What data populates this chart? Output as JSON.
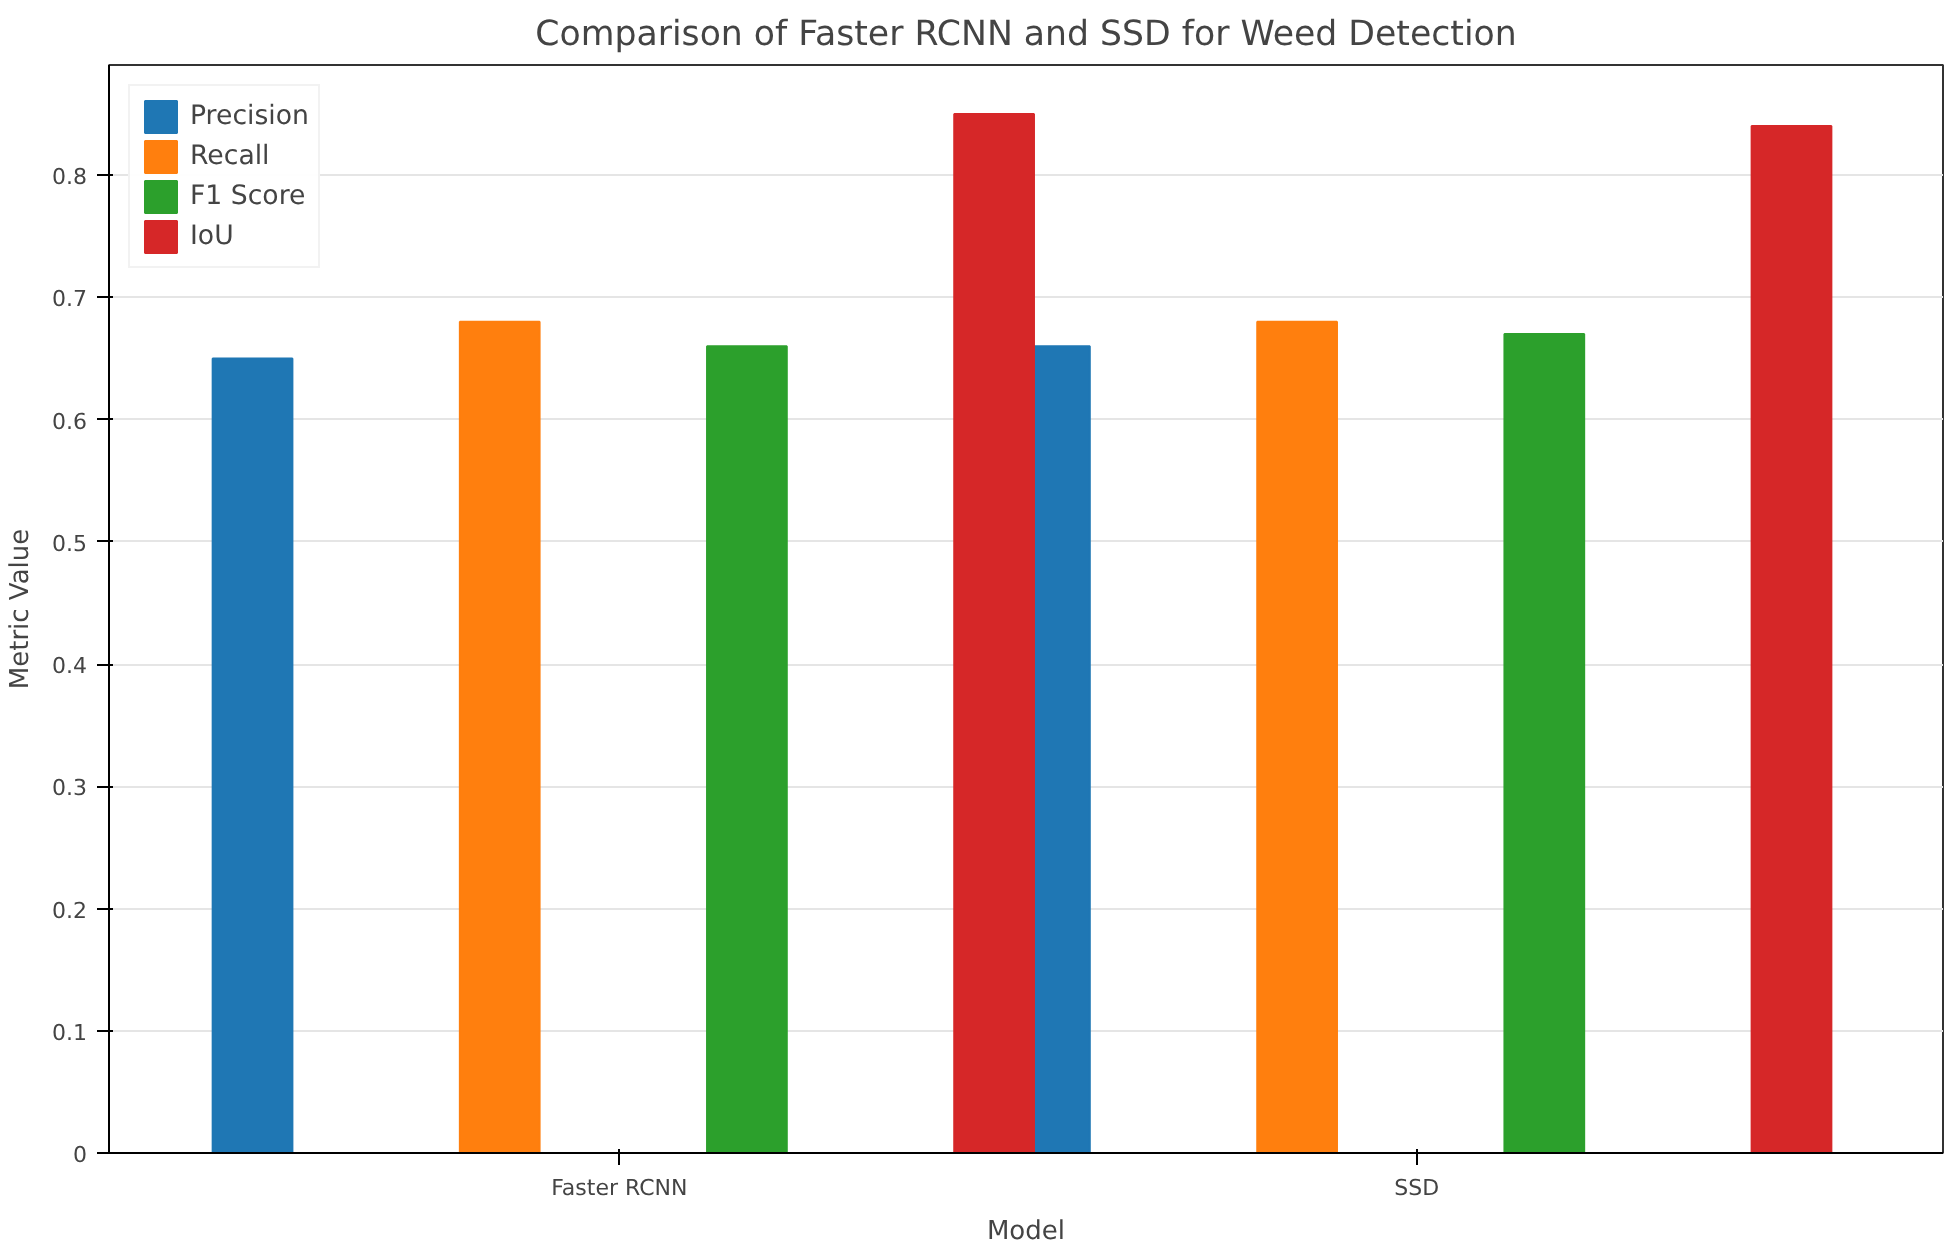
{
  "chart_data": {
    "type": "bar",
    "title": "Comparison of Faster RCNN and SSD for Weed Detection",
    "xlabel": "Model",
    "ylabel": "Metric Value",
    "categories": [
      "Faster RCNN",
      "SSD"
    ],
    "series": [
      {
        "name": "Precision",
        "color": "#1f77b4",
        "values": [
          0.65,
          0.66
        ]
      },
      {
        "name": "Recall",
        "color": "#ff7f0e",
        "values": [
          0.68,
          0.68
        ]
      },
      {
        "name": "F1 Score",
        "color": "#2ca02c",
        "values": [
          0.66,
          0.67
        ]
      },
      {
        "name": "IoU",
        "color": "#d62728",
        "values": [
          0.85,
          0.84
        ]
      }
    ],
    "ylim": [
      0,
      0.89
    ],
    "yticks": [
      0,
      0.1,
      0.2,
      0.3,
      0.4,
      0.5,
      0.6,
      0.7,
      0.8
    ],
    "grid": "y",
    "legend": "top left"
  }
}
